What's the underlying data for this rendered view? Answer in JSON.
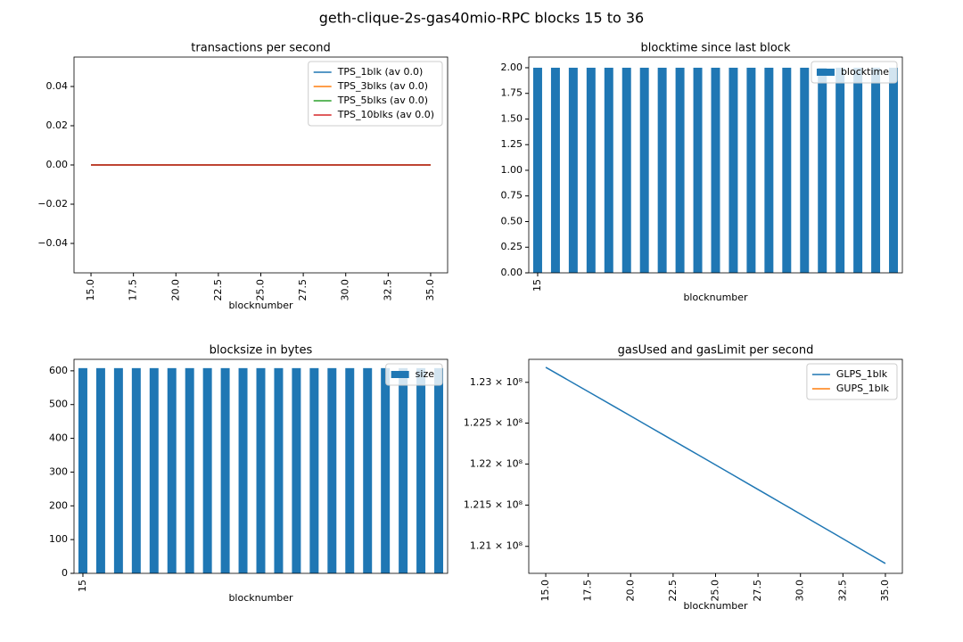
{
  "title": "geth-clique-2s-gas40mio-RPC blocks 15 to 36",
  "chart_data": [
    {
      "type": "line",
      "title": "transactions per second",
      "xlabel": "blocknumber",
      "x": [
        15,
        16,
        17,
        18,
        19,
        20,
        21,
        22,
        23,
        24,
        25,
        26,
        27,
        28,
        29,
        30,
        31,
        32,
        33,
        34,
        35
      ],
      "series": [
        {
          "name": "TPS_1blk (av 0.0)",
          "color": "#1f77b4",
          "values": [
            0,
            0,
            0,
            0,
            0,
            0,
            0,
            0,
            0,
            0,
            0,
            0,
            0,
            0,
            0,
            0,
            0,
            0,
            0,
            0,
            0
          ]
        },
        {
          "name": "TPS_3blks (av 0.0)",
          "color": "#ff7f0e",
          "values": [
            0,
            0,
            0,
            0,
            0,
            0,
            0,
            0,
            0,
            0,
            0,
            0,
            0,
            0,
            0,
            0,
            0,
            0,
            0,
            0,
            0
          ]
        },
        {
          "name": "TPS_5blks (av 0.0)",
          "color": "#2ca02c",
          "values": [
            0,
            0,
            0,
            0,
            0,
            0,
            0,
            0,
            0,
            0,
            0,
            0,
            0,
            0,
            0,
            0,
            0,
            0,
            0,
            0,
            0
          ]
        },
        {
          "name": "TPS_10blks (av 0.0)",
          "color": "#d62728",
          "values": [
            0,
            0,
            0,
            0,
            0,
            0,
            0,
            0,
            0,
            0,
            0,
            0,
            0,
            0,
            0,
            0,
            0,
            0,
            0,
            0,
            0
          ]
        }
      ],
      "xlim": [
        14,
        36
      ],
      "xticks": [
        {
          "value": 15,
          "label": "15.0"
        },
        {
          "value": 17.5,
          "label": "17.5"
        },
        {
          "value": 20,
          "label": "20.0"
        },
        {
          "value": 22.5,
          "label": "22.5"
        },
        {
          "value": 25,
          "label": "25.0"
        },
        {
          "value": 27.5,
          "label": "27.5"
        },
        {
          "value": 30,
          "label": "30.0"
        },
        {
          "value": 32.5,
          "label": "32.5"
        },
        {
          "value": 35,
          "label": "35.0"
        }
      ],
      "ylim": [
        -0.055,
        0.055
      ],
      "yticks": [
        {
          "value": -0.04,
          "label": "−0.04"
        },
        {
          "value": -0.02,
          "label": "−0.02"
        },
        {
          "value": 0,
          "label": "0.00"
        },
        0.02,
        0.04
      ],
      "legend": "upper right"
    },
    {
      "type": "bar",
      "title": "blocktime since last block",
      "xlabel": "blocknumber",
      "categories": [
        "15",
        null,
        null,
        null,
        null,
        null,
        null,
        null,
        null,
        null,
        null,
        null,
        null,
        null,
        null,
        null,
        null,
        null,
        null,
        null,
        null
      ],
      "series": [
        {
          "name": "blocktime",
          "color": "#1f77b4",
          "values": [
            2,
            2,
            2,
            2,
            2,
            2,
            2,
            2,
            2,
            2,
            2,
            2,
            2,
            2,
            2,
            2,
            2,
            2,
            2,
            2,
            2
          ]
        }
      ],
      "ylim": [
        0,
        2.104
      ],
      "yticks": [
        {
          "value": 0,
          "label": "0.00"
        },
        0.25,
        {
          "value": 0.5,
          "label": "0.50"
        },
        0.75,
        {
          "value": 1,
          "label": "1.00"
        },
        1.25,
        {
          "value": 1.5,
          "label": "1.50"
        },
        1.75,
        {
          "value": 2,
          "label": "2.00"
        }
      ],
      "legend": "upper right"
    },
    {
      "type": "bar",
      "title": "blocksize in bytes",
      "xlabel": "blocknumber",
      "categories": [
        "15",
        null,
        null,
        null,
        null,
        null,
        null,
        null,
        null,
        null,
        null,
        null,
        null,
        null,
        null,
        null,
        null,
        null,
        null,
        null,
        null
      ],
      "series": [
        {
          "name": "size",
          "color": "#1f77b4",
          "values": [
            608,
            608,
            608,
            608,
            608,
            608,
            608,
            608,
            608,
            608,
            608,
            608,
            608,
            608,
            608,
            608,
            608,
            608,
            608,
            608,
            608
          ]
        }
      ],
      "ylim": [
        0,
        634
      ],
      "yticks": [
        0,
        100,
        200,
        300,
        400,
        500,
        600
      ],
      "legend": "upper right"
    },
    {
      "type": "line",
      "title": "gasUsed and gasLimit per second",
      "xlabel": "blocknumber",
      "log": true,
      "x": [
        15,
        16,
        17,
        18,
        19,
        20,
        21,
        22,
        23,
        24,
        25,
        26,
        27,
        28,
        29,
        30,
        31,
        32,
        33,
        34,
        35
      ],
      "series": [
        {
          "name": "GLPS_1blk",
          "color": "#1f77b4",
          "values": [
            123185000,
            123065400,
            122945800,
            122826200,
            122706600,
            122587000,
            122467400,
            122347800,
            122228200,
            122108600,
            121989000,
            121869400,
            121749800,
            121630200,
            121510600,
            121391000,
            121271400,
            121151800,
            121032200,
            120912600,
            120793000
          ]
        },
        {
          "name": "GUPS_1blk",
          "color": "#ff7f0e",
          "values": [
            null,
            null,
            null,
            null,
            null,
            null,
            null,
            null,
            null,
            null,
            null,
            null,
            null,
            null,
            null,
            null,
            null,
            null,
            null,
            null,
            null
          ]
        }
      ],
      "xlim": [
        14,
        36
      ],
      "xticks": [
        {
          "value": 15,
          "label": "15.0"
        },
        {
          "value": 17.5,
          "label": "17.5"
        },
        {
          "value": 20,
          "label": "20.0"
        },
        {
          "value": 22.5,
          "label": "22.5"
        },
        {
          "value": 25,
          "label": "25.0"
        },
        {
          "value": 27.5,
          "label": "27.5"
        },
        {
          "value": 30,
          "label": "30.0"
        },
        {
          "value": 32.5,
          "label": "32.5"
        },
        {
          "value": 35,
          "label": "35.0"
        }
      ],
      "ylim": [
        120674000,
        123283000
      ],
      "yticks": [
        {
          "value": 121000000,
          "label": "1.21 × 10⁸"
        },
        {
          "value": 121500000,
          "label": "1.215 × 10⁸"
        },
        {
          "value": 122000000,
          "label": "1.22 × 10⁸"
        },
        {
          "value": 122500000,
          "label": "1.225 × 10⁸"
        },
        {
          "value": 123000000,
          "label": "1.23 × 10⁸"
        }
      ],
      "legend": "upper right"
    }
  ]
}
